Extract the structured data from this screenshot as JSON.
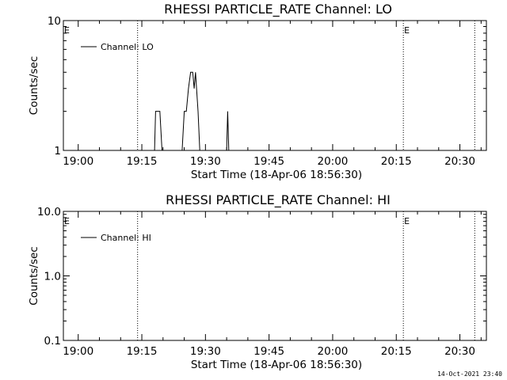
{
  "timestamp": "14-Oct-2021 23:40",
  "chart_data": [
    {
      "type": "line",
      "title": "RHESSI PARTICLE_RATE Channel: LO",
      "xlabel": "Start Time (18-Apr-06 18:56:30)",
      "ylabel": "Counts/sec",
      "yscale": "log",
      "ylim": [
        1,
        10
      ],
      "yticks": [
        "1",
        "10"
      ],
      "xlim": [
        "18:56:30",
        "20:36:15"
      ],
      "xticks": [
        "19:00",
        "19:15",
        "19:30",
        "19:45",
        "20:00",
        "20:15",
        "20:30"
      ],
      "legend": "top-left",
      "series": [
        {
          "name": "Channel: LO",
          "points": [
            [
              "19:18:00",
              1
            ],
            [
              "19:18:15",
              2
            ],
            [
              "19:19:15",
              2
            ],
            [
              "19:19:45",
              1
            ],
            [
              "19:24:30",
              1
            ],
            [
              "19:25:00",
              2
            ],
            [
              "19:25:30",
              2
            ],
            [
              "19:26:00",
              3
            ],
            [
              "19:26:30",
              4
            ],
            [
              "19:27:00",
              4
            ],
            [
              "19:27:20",
              3
            ],
            [
              "19:27:40",
              4
            ],
            [
              "19:28:15",
              2
            ],
            [
              "19:28:40",
              1
            ],
            [
              "19:35:00",
              1
            ],
            [
              "19:35:15",
              2
            ],
            [
              "19:35:30",
              1
            ]
          ]
        }
      ],
      "markers": [
        {
          "time": "19:14:00",
          "label": ""
        },
        {
          "time": "20:16:40",
          "label": "E"
        },
        {
          "time": "20:33:30",
          "label": ""
        }
      ],
      "corner_label": "E"
    },
    {
      "type": "line",
      "title": "RHESSI PARTICLE_RATE Channel: HI",
      "xlabel": "Start Time (18-Apr-06 18:56:30)",
      "ylabel": "Counts/sec",
      "yscale": "log",
      "ylim": [
        0.1,
        10.0
      ],
      "yticks": [
        "0.1",
        "1.0",
        "10.0"
      ],
      "xlim": [
        "18:56:30",
        "20:36:15"
      ],
      "xticks": [
        "19:00",
        "19:15",
        "19:30",
        "19:45",
        "20:00",
        "20:15",
        "20:30"
      ],
      "legend": "top-left",
      "series": [
        {
          "name": "Channel: HI",
          "points": []
        }
      ],
      "markers": [
        {
          "time": "19:14:00",
          "label": ""
        },
        {
          "time": "20:16:40",
          "label": "E"
        },
        {
          "time": "20:33:30",
          "label": ""
        }
      ],
      "corner_label": "E"
    }
  ]
}
